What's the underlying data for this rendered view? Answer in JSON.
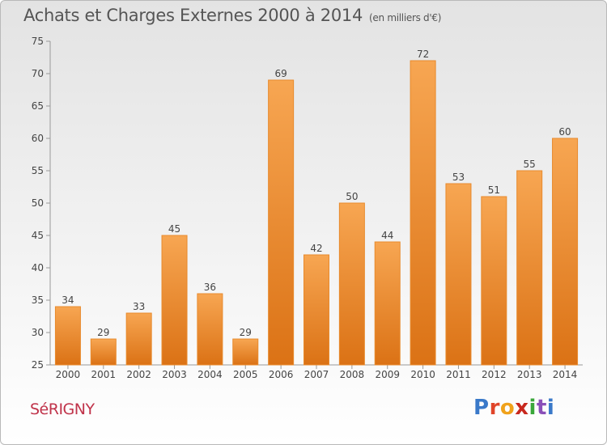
{
  "header": {
    "title": "Achats et Charges Externes 2000 à 2014",
    "subtitle": "(en milliers d'€)"
  },
  "footer": {
    "commune": "SéRIGNY",
    "logo_letters": [
      {
        "ch": "P",
        "color": "#3a79c9"
      },
      {
        "ch": "r",
        "color": "#e0452a"
      },
      {
        "ch": "o",
        "color": "#f0a21b"
      },
      {
        "ch": "x",
        "color": "#c8281e"
      },
      {
        "ch": "i",
        "color": "#3aa73a"
      },
      {
        "ch": "t",
        "color": "#8a4fb8"
      },
      {
        "ch": "i",
        "color": "#3a79c9"
      }
    ]
  },
  "chart_data": {
    "type": "bar",
    "categories": [
      "2000",
      "2001",
      "2002",
      "2003",
      "2004",
      "2005",
      "2006",
      "2007",
      "2008",
      "2009",
      "2010",
      "2011",
      "2012",
      "2013",
      "2014"
    ],
    "values": [
      34,
      29,
      33,
      45,
      36,
      29,
      69,
      42,
      50,
      44,
      72,
      53,
      51,
      55,
      60
    ],
    "ylim": [
      25,
      75
    ],
    "yticks": [
      25,
      30,
      35,
      40,
      45,
      50,
      55,
      60,
      65,
      70,
      75
    ],
    "grid": false,
    "bar_color": "#f0943a"
  }
}
